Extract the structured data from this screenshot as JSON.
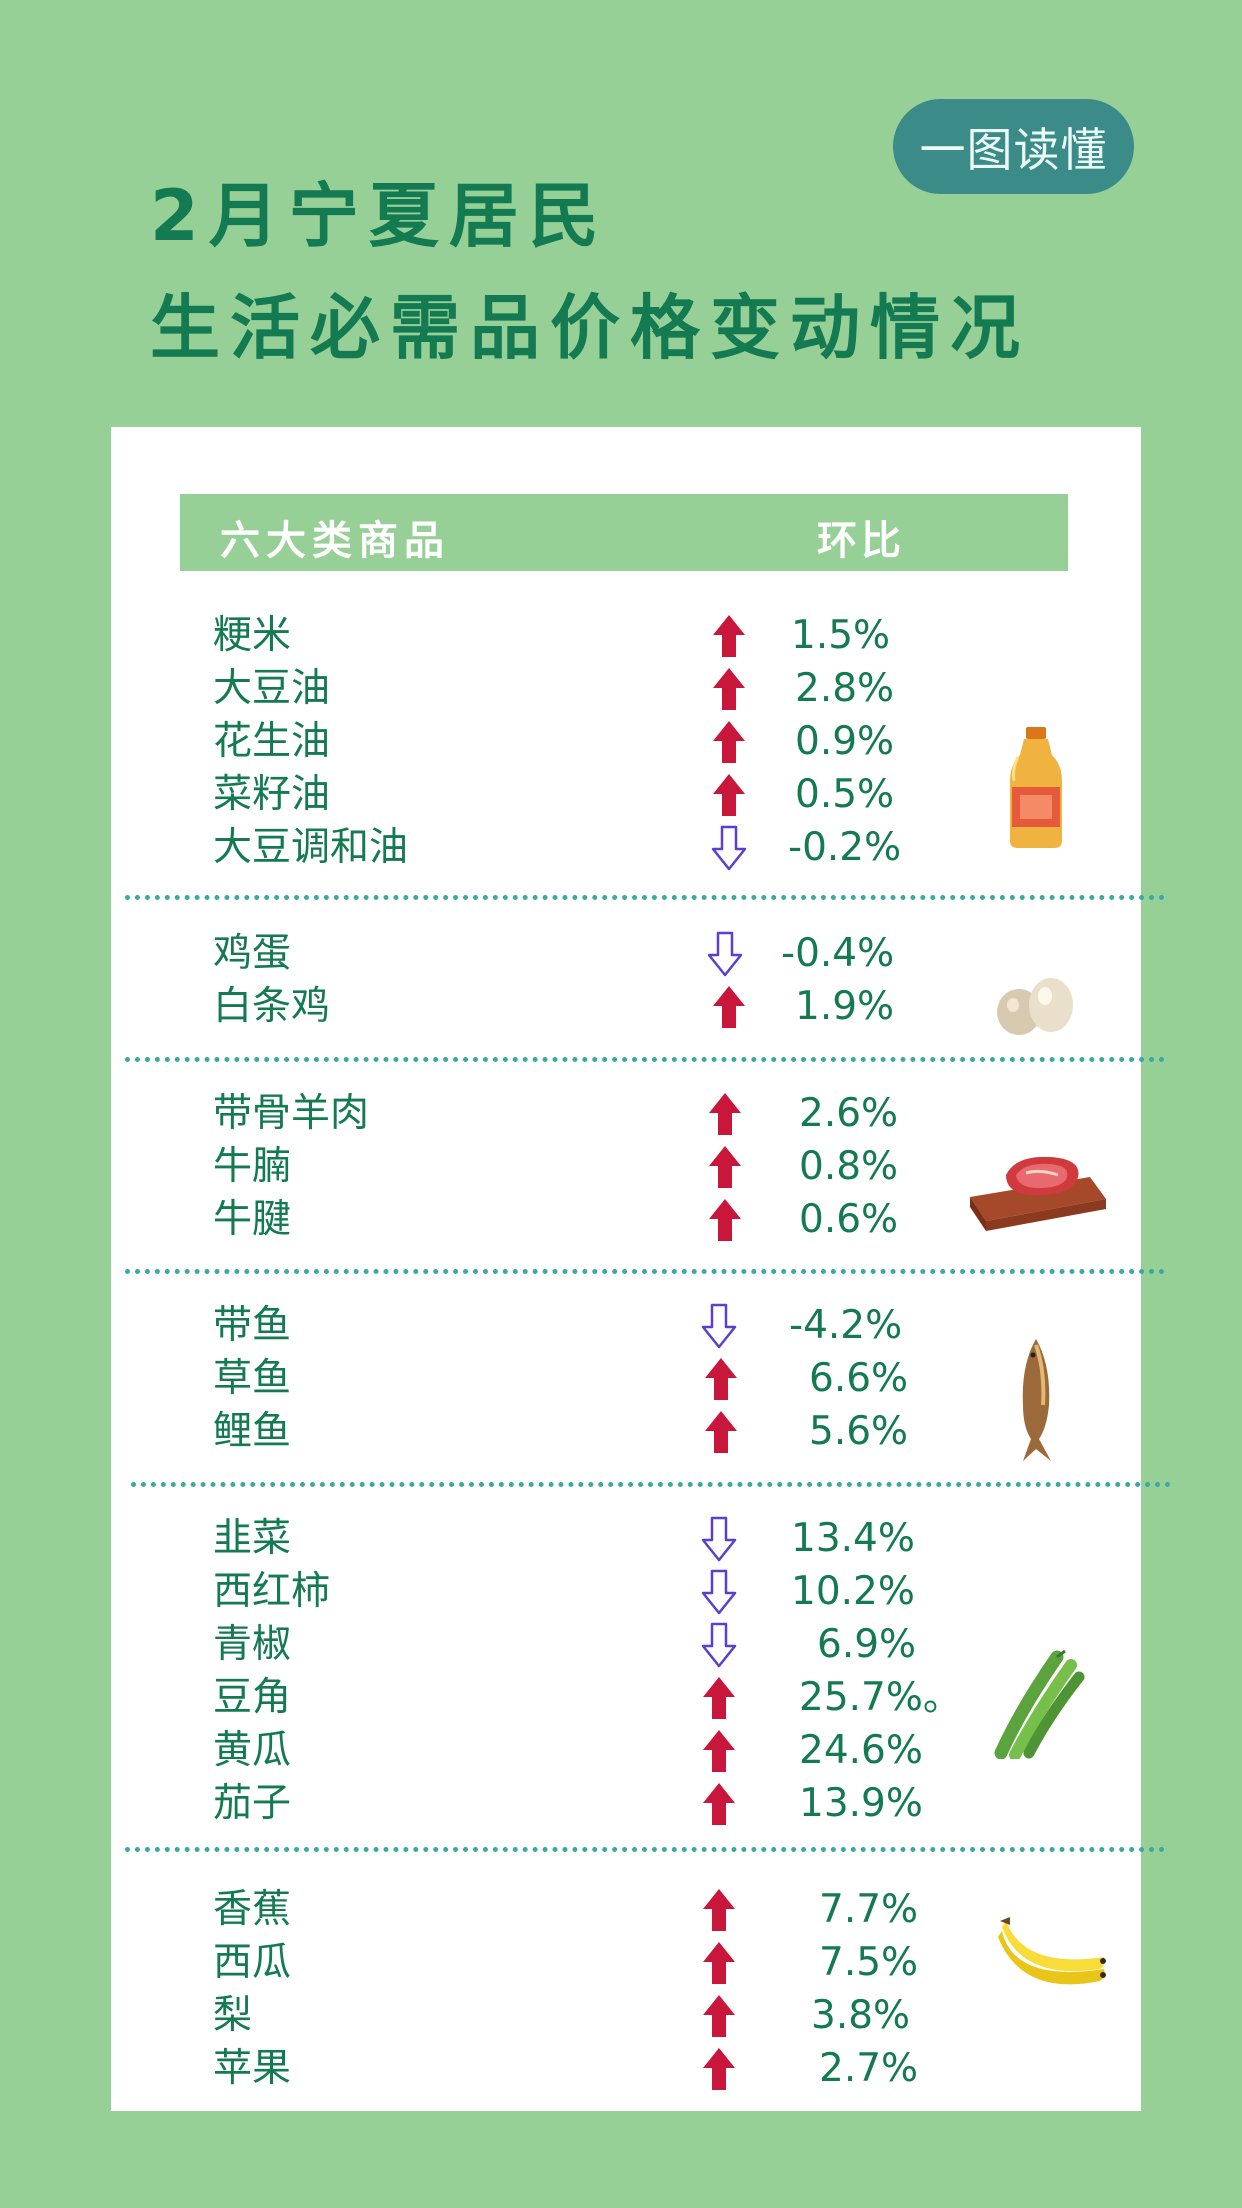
{
  "badge": "一图读懂",
  "title": {
    "line1": "2月宁夏居民",
    "line2": "生活必需品价格变动情况"
  },
  "table": {
    "col_category": "六大类商品",
    "col_change": "环比",
    "rows": [
      {
        "name": "粳米",
        "direction": "up",
        "value": "1.5%"
      },
      {
        "name": "大豆油",
        "direction": "up",
        "value": "2.8%"
      },
      {
        "name": "花生油",
        "direction": "up",
        "value": "0.9%"
      },
      {
        "name": "菜籽油",
        "direction": "up",
        "value": "0.5%"
      },
      {
        "name": "大豆调和油",
        "direction": "down",
        "value": "-0.2%"
      },
      {
        "name": "鸡蛋",
        "direction": "down",
        "value": "-0.4%"
      },
      {
        "name": "白条鸡",
        "direction": "up",
        "value": "1.9%"
      },
      {
        "name": "带骨羊肉",
        "direction": "up",
        "value": "2.6%"
      },
      {
        "name": "牛腩",
        "direction": "up",
        "value": "0.8%"
      },
      {
        "name": "牛腱",
        "direction": "up",
        "value": "0.6%"
      },
      {
        "name": "带鱼",
        "direction": "down",
        "value": "-4.2%"
      },
      {
        "name": "草鱼",
        "direction": "up",
        "value": "6.6%"
      },
      {
        "name": "鲤鱼",
        "direction": "up",
        "value": "5.6%"
      },
      {
        "name": "韭菜",
        "direction": "down",
        "value": "13.4%"
      },
      {
        "name": "西红柿",
        "direction": "down",
        "value": "10.2%"
      },
      {
        "name": "青椒",
        "direction": "down",
        "value": "6.9%"
      },
      {
        "name": "豆角",
        "direction": "up",
        "value": "25.7%。"
      },
      {
        "name": "黄瓜",
        "direction": "up",
        "value": "24.6%"
      },
      {
        "name": "茄子",
        "direction": "up",
        "value": "13.9%"
      },
      {
        "name": "香蕉",
        "direction": "up",
        "value": "7.7%"
      },
      {
        "name": "西瓜",
        "direction": "up",
        "value": "7.5%"
      },
      {
        "name": "梨",
        "direction": "up",
        "value": "3.8%"
      },
      {
        "name": "苹果",
        "direction": "up",
        "value": "2.7%"
      }
    ]
  },
  "icons": {
    "up": "red-up-arrow-icon",
    "down": "outline-down-arrow-icon",
    "groups": [
      "oil-bottle-icon",
      "eggs-icon",
      "meat-icon",
      "fish-icon",
      "green-beans-icon",
      "banana-icon"
    ]
  },
  "colors": {
    "background": "#97d097",
    "title": "#137a52",
    "badge": "#3b8b89",
    "up_arrow": "#c8173a",
    "down_arrow": "#5a3fd0",
    "divider": "#3aa8a3"
  }
}
